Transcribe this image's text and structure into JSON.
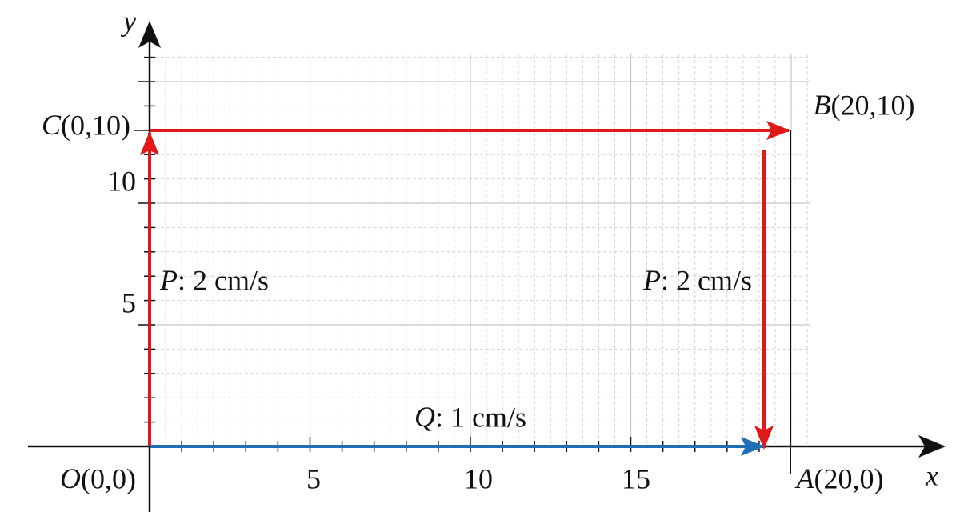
{
  "axes": {
    "x_label": "x",
    "y_label": "y",
    "x_ticks": [
      "5",
      "10",
      "15"
    ],
    "y_ticks": [
      "5",
      "10"
    ]
  },
  "points": [
    {
      "label": "O(0,0)"
    },
    {
      "label": "A(20,0)"
    },
    {
      "label": "B(20,10)"
    },
    {
      "label": "C(0,10)"
    }
  ],
  "motions": [
    {
      "label": "P: 2 cm/s"
    },
    {
      "label": "P: 2 cm/s"
    },
    {
      "label": "Q: 1 cm/s"
    }
  ]
}
